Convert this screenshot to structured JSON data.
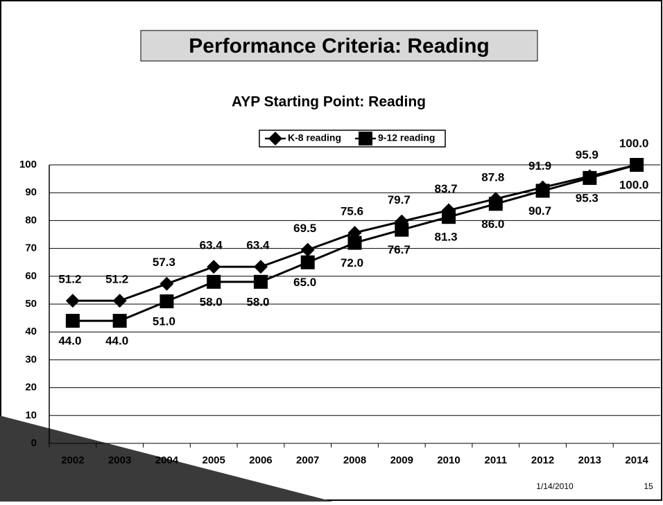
{
  "slide_title": "Performance Criteria: Reading",
  "footer": {
    "date": "1/14/2010",
    "page": "15"
  },
  "chart_data": {
    "type": "line",
    "title": "AYP Starting Point: Reading",
    "categories": [
      "2002",
      "2003",
      "2004",
      "2005",
      "2006",
      "2007",
      "2008",
      "2009",
      "2010",
      "2011",
      "2012",
      "2013",
      "2014"
    ],
    "series": [
      {
        "name": "K-8 reading",
        "color": "#000000",
        "marker": "diamond",
        "values": [
          51.2,
          51.2,
          57.3,
          63.4,
          63.4,
          69.5,
          75.6,
          79.7,
          83.7,
          87.8,
          91.9,
          95.9,
          100
        ],
        "value_labels": [
          "51.2",
          "51.2",
          "57.3",
          "63.4",
          "63.4",
          "69.5",
          "75.6",
          "79.7",
          "83.7",
          "87.8",
          "91.9",
          "95.9",
          "100.0"
        ]
      },
      {
        "name": "9-12 reading",
        "color": "#000000",
        "marker": "square",
        "values": [
          44,
          44,
          51,
          58,
          58,
          65,
          72,
          76.7,
          81.3,
          86,
          90.7,
          95.3,
          100
        ],
        "value_labels": [
          "44.0",
          "44.0",
          "51.0",
          "58.0",
          "58.0",
          "65.0",
          "72.0",
          "76.7",
          "81.3",
          "86.0",
          "90.7",
          "95.3",
          "100.0"
        ]
      }
    ],
    "ylim": [
      0,
      100
    ],
    "yticks": [
      0,
      10,
      20,
      30,
      40,
      50,
      60,
      70,
      80,
      90,
      100
    ],
    "grid": true,
    "legend": "top"
  }
}
